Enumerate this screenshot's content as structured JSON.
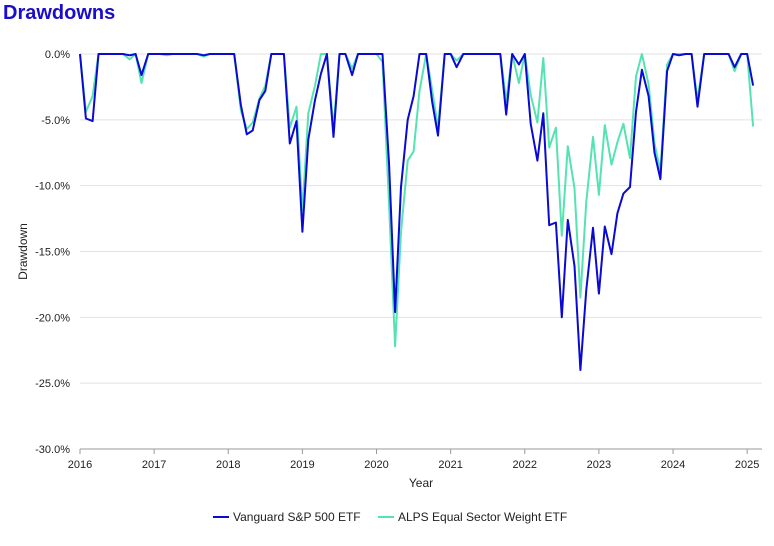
{
  "title": "Drawdowns",
  "title_color": "#1a0dcc",
  "chart_data": {
    "type": "line",
    "xlabel": "Year",
    "ylabel": "Drawdown",
    "x_range": [
      2016,
      2025.2
    ],
    "ylim": [
      -30,
      0
    ],
    "y_ticks": [
      0,
      -5,
      -10,
      -15,
      -20,
      -25,
      -30
    ],
    "y_tick_labels": [
      "0.0%",
      "-5.0%",
      "-10.0%",
      "-15.0%",
      "-20.0%",
      "-25.0%",
      "-30.0%"
    ],
    "x_ticks": [
      2016,
      2017,
      2018,
      2019,
      2020,
      2021,
      2022,
      2023,
      2024,
      2025
    ],
    "x_tick_labels": [
      "2016",
      "2017",
      "2018",
      "2019",
      "2020",
      "2021",
      "2022",
      "2023",
      "2024",
      "2025"
    ],
    "grid": true,
    "legend_position": "bottom",
    "series": [
      {
        "name": "Vanguard S&P 500 ETF",
        "color": "#0a0ad2",
        "points": [
          [
            2016.0,
            0
          ],
          [
            2016.08,
            -4.9
          ],
          [
            2016.17,
            -5.1
          ],
          [
            2016.25,
            0
          ],
          [
            2016.33,
            0
          ],
          [
            2016.42,
            0
          ],
          [
            2016.5,
            0
          ],
          [
            2016.58,
            0
          ],
          [
            2016.67,
            -0.1
          ],
          [
            2016.75,
            0
          ],
          [
            2016.83,
            -1.6
          ],
          [
            2016.92,
            0
          ],
          [
            2017.0,
            0
          ],
          [
            2017.08,
            0
          ],
          [
            2017.17,
            0
          ],
          [
            2017.25,
            0
          ],
          [
            2017.33,
            0
          ],
          [
            2017.42,
            0
          ],
          [
            2017.5,
            0
          ],
          [
            2017.58,
            0
          ],
          [
            2017.67,
            -0.1
          ],
          [
            2017.75,
            0
          ],
          [
            2017.83,
            0
          ],
          [
            2017.92,
            0
          ],
          [
            2018.0,
            0
          ],
          [
            2018.08,
            0
          ],
          [
            2018.17,
            -3.9
          ],
          [
            2018.25,
            -6.1
          ],
          [
            2018.33,
            -5.8
          ],
          [
            2018.42,
            -3.5
          ],
          [
            2018.5,
            -2.8
          ],
          [
            2018.58,
            0
          ],
          [
            2018.67,
            0
          ],
          [
            2018.75,
            0
          ],
          [
            2018.83,
            -6.8
          ],
          [
            2018.92,
            -5.1
          ],
          [
            2019.0,
            -13.5
          ],
          [
            2019.08,
            -6.5
          ],
          [
            2019.17,
            -3.5
          ],
          [
            2019.25,
            -1.5
          ],
          [
            2019.33,
            0
          ],
          [
            2019.42,
            -6.3
          ],
          [
            2019.5,
            0
          ],
          [
            2019.58,
            0
          ],
          [
            2019.67,
            -1.6
          ],
          [
            2019.75,
            0
          ],
          [
            2019.83,
            0
          ],
          [
            2019.92,
            0
          ],
          [
            2020.0,
            0
          ],
          [
            2020.08,
            0
          ],
          [
            2020.17,
            -8.4
          ],
          [
            2020.25,
            -19.6
          ],
          [
            2020.33,
            -10.1
          ],
          [
            2020.42,
            -5.0
          ],
          [
            2020.5,
            -3.2
          ],
          [
            2020.58,
            0
          ],
          [
            2020.67,
            0
          ],
          [
            2020.75,
            -3.6
          ],
          [
            2020.83,
            -6.2
          ],
          [
            2020.92,
            0
          ],
          [
            2021.0,
            0
          ],
          [
            2021.08,
            -1.0
          ],
          [
            2021.17,
            0
          ],
          [
            2021.25,
            0
          ],
          [
            2021.33,
            0
          ],
          [
            2021.42,
            0
          ],
          [
            2021.5,
            0
          ],
          [
            2021.58,
            0
          ],
          [
            2021.67,
            0
          ],
          [
            2021.75,
            -4.6
          ],
          [
            2021.83,
            0
          ],
          [
            2021.92,
            -0.8
          ],
          [
            2022.0,
            0
          ],
          [
            2022.08,
            -5.3
          ],
          [
            2022.17,
            -8.1
          ],
          [
            2022.25,
            -4.5
          ],
          [
            2022.33,
            -13.0
          ],
          [
            2022.42,
            -12.8
          ],
          [
            2022.5,
            -20.0
          ],
          [
            2022.58,
            -12.6
          ],
          [
            2022.67,
            -16.1
          ],
          [
            2022.75,
            -24.0
          ],
          [
            2022.83,
            -17.9
          ],
          [
            2022.92,
            -13.2
          ],
          [
            2023.0,
            -18.2
          ],
          [
            2023.08,
            -13.1
          ],
          [
            2023.17,
            -15.2
          ],
          [
            2023.25,
            -12.1
          ],
          [
            2023.33,
            -10.6
          ],
          [
            2023.42,
            -10.1
          ],
          [
            2023.5,
            -4.4
          ],
          [
            2023.58,
            -1.2
          ],
          [
            2023.67,
            -3.2
          ],
          [
            2023.75,
            -7.5
          ],
          [
            2023.83,
            -9.5
          ],
          [
            2023.92,
            -1.3
          ],
          [
            2024.0,
            0
          ],
          [
            2024.08,
            -0.1
          ],
          [
            2024.17,
            0
          ],
          [
            2024.25,
            0
          ],
          [
            2024.33,
            -4.0
          ],
          [
            2024.42,
            0
          ],
          [
            2024.5,
            0
          ],
          [
            2024.58,
            0
          ],
          [
            2024.67,
            0
          ],
          [
            2024.75,
            0
          ],
          [
            2024.83,
            -1.0
          ],
          [
            2024.92,
            0
          ],
          [
            2025.0,
            0
          ],
          [
            2025.08,
            -2.4
          ]
        ]
      },
      {
        "name": "ALPS Equal Sector Weight ETF",
        "color": "#55e3b1",
        "points": [
          [
            2016.0,
            0
          ],
          [
            2016.08,
            -4.4
          ],
          [
            2016.17,
            -3.2
          ],
          [
            2016.25,
            0
          ],
          [
            2016.33,
            0
          ],
          [
            2016.42,
            0
          ],
          [
            2016.5,
            0
          ],
          [
            2016.58,
            0
          ],
          [
            2016.67,
            -0.4
          ],
          [
            2016.75,
            0
          ],
          [
            2016.83,
            -2.2
          ],
          [
            2016.92,
            0
          ],
          [
            2017.0,
            0
          ],
          [
            2017.08,
            0
          ],
          [
            2017.17,
            -0.1
          ],
          [
            2017.25,
            0
          ],
          [
            2017.33,
            0
          ],
          [
            2017.42,
            0
          ],
          [
            2017.5,
            0
          ],
          [
            2017.58,
            0
          ],
          [
            2017.67,
            -0.2
          ],
          [
            2017.75,
            0
          ],
          [
            2017.83,
            0
          ],
          [
            2017.92,
            0
          ],
          [
            2018.0,
            0
          ],
          [
            2018.08,
            0
          ],
          [
            2018.17,
            -4.3
          ],
          [
            2018.25,
            -5.7
          ],
          [
            2018.33,
            -5.2
          ],
          [
            2018.42,
            -3.4
          ],
          [
            2018.5,
            -2.4
          ],
          [
            2018.58,
            0
          ],
          [
            2018.67,
            0
          ],
          [
            2018.75,
            0
          ],
          [
            2018.83,
            -5.6
          ],
          [
            2018.92,
            -4.0
          ],
          [
            2019.0,
            -11.9
          ],
          [
            2019.08,
            -4.5
          ],
          [
            2019.17,
            -2.4
          ],
          [
            2019.25,
            0
          ],
          [
            2019.33,
            0
          ],
          [
            2019.42,
            -5.6
          ],
          [
            2019.5,
            0
          ],
          [
            2019.58,
            0
          ],
          [
            2019.67,
            -1.1
          ],
          [
            2019.75,
            0
          ],
          [
            2019.83,
            0
          ],
          [
            2019.92,
            0
          ],
          [
            2020.0,
            0
          ],
          [
            2020.08,
            -0.6
          ],
          [
            2020.17,
            -11.5
          ],
          [
            2020.25,
            -22.2
          ],
          [
            2020.33,
            -13.5
          ],
          [
            2020.42,
            -8.1
          ],
          [
            2020.5,
            -7.4
          ],
          [
            2020.58,
            -2.8
          ],
          [
            2020.67,
            0
          ],
          [
            2020.75,
            -2.7
          ],
          [
            2020.83,
            -5.6
          ],
          [
            2020.92,
            0
          ],
          [
            2021.0,
            0
          ],
          [
            2021.08,
            -0.5
          ],
          [
            2021.17,
            0
          ],
          [
            2021.25,
            0
          ],
          [
            2021.33,
            0
          ],
          [
            2021.42,
            0
          ],
          [
            2021.5,
            0
          ],
          [
            2021.58,
            0
          ],
          [
            2021.67,
            0
          ],
          [
            2021.75,
            -3.6
          ],
          [
            2021.83,
            0
          ],
          [
            2021.92,
            -2.2
          ],
          [
            2022.0,
            0
          ],
          [
            2022.08,
            -3.1
          ],
          [
            2022.17,
            -5.2
          ],
          [
            2022.25,
            -0.3
          ],
          [
            2022.33,
            -7.1
          ],
          [
            2022.42,
            -5.6
          ],
          [
            2022.5,
            -13.8
          ],
          [
            2022.58,
            -7.0
          ],
          [
            2022.67,
            -10.2
          ],
          [
            2022.75,
            -18.5
          ],
          [
            2022.83,
            -11.2
          ],
          [
            2022.92,
            -6.3
          ],
          [
            2023.0,
            -10.7
          ],
          [
            2023.08,
            -5.4
          ],
          [
            2023.17,
            -8.4
          ],
          [
            2023.25,
            -6.7
          ],
          [
            2023.33,
            -5.3
          ],
          [
            2023.42,
            -7.9
          ],
          [
            2023.5,
            -1.7
          ],
          [
            2023.58,
            0
          ],
          [
            2023.67,
            -2.3
          ],
          [
            2023.75,
            -6.8
          ],
          [
            2023.83,
            -8.9
          ],
          [
            2023.92,
            -0.8
          ],
          [
            2024.0,
            0
          ],
          [
            2024.08,
            0
          ],
          [
            2024.17,
            0
          ],
          [
            2024.25,
            0
          ],
          [
            2024.33,
            -3.5
          ],
          [
            2024.42,
            0
          ],
          [
            2024.5,
            0
          ],
          [
            2024.58,
            0
          ],
          [
            2024.67,
            0
          ],
          [
            2024.75,
            0
          ],
          [
            2024.83,
            -1.3
          ],
          [
            2024.92,
            0
          ],
          [
            2025.0,
            0
          ],
          [
            2025.08,
            -5.5
          ]
        ]
      }
    ]
  }
}
